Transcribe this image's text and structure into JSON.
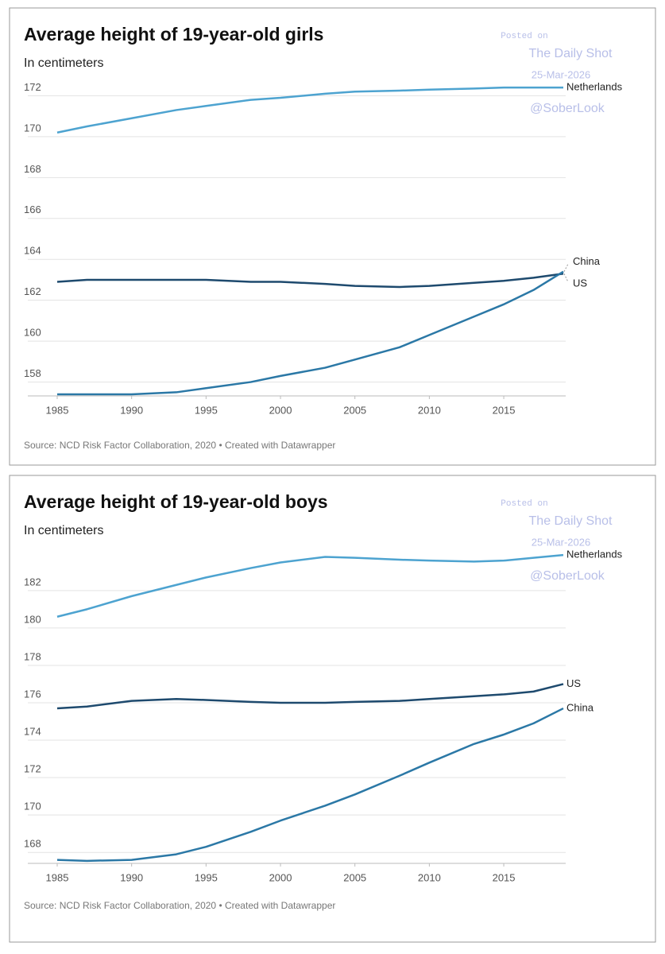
{
  "chart_data": [
    {
      "type": "line",
      "title": "Average height of 19-year-old girls",
      "subtitle": "In centimeters",
      "source": "Source: NCD Risk Factor Collaboration, 2020 • Created with Datawrapper",
      "watermark": [
        "Posted on",
        "The Daily Shot",
        "25-Mar-2026",
        "@SoberLook"
      ],
      "x": [
        1985,
        1987,
        1990,
        1993,
        1995,
        1998,
        2000,
        2003,
        2005,
        2008,
        2010,
        2013,
        2015,
        2017,
        2019
      ],
      "xlim": [
        1985,
        2019
      ],
      "xticks": [
        1985,
        1990,
        1995,
        2000,
        2005,
        2010,
        2015
      ],
      "ylim": [
        157.4,
        172.6
      ],
      "yticks": [
        158,
        160,
        162,
        164,
        166,
        168,
        170,
        172
      ],
      "grid": true,
      "series": [
        {
          "name": "Netherlands",
          "color": "#4da3d0",
          "values": [
            170.2,
            170.5,
            170.9,
            171.3,
            171.5,
            171.8,
            171.9,
            172.1,
            172.2,
            172.25,
            172.3,
            172.35,
            172.4,
            172.4,
            172.4
          ]
        },
        {
          "name": "US",
          "color": "#1e4a6e",
          "values": [
            162.9,
            163.0,
            163.0,
            163.0,
            163.0,
            162.9,
            162.9,
            162.8,
            162.7,
            162.65,
            162.7,
            162.85,
            162.95,
            163.1,
            163.3
          ]
        },
        {
          "name": "China",
          "color": "#2b78a6",
          "values": [
            157.4,
            157.4,
            157.4,
            157.5,
            157.7,
            158.0,
            158.3,
            158.7,
            159.1,
            159.7,
            160.3,
            161.2,
            161.8,
            162.5,
            163.4
          ]
        }
      ]
    },
    {
      "type": "line",
      "title": "Average height of 19-year-old boys",
      "subtitle": "In centimeters",
      "source": "Source: NCD Risk Factor Collaboration, 2020 • Created with Datawrapper",
      "watermark": [
        "Posted on",
        "The Daily Shot",
        "25-Mar-2026",
        "@SoberLook"
      ],
      "x": [
        1985,
        1987,
        1990,
        1993,
        1995,
        1998,
        2000,
        2003,
        2005,
        2008,
        2010,
        2013,
        2015,
        2017,
        2019
      ],
      "xlim": [
        1985,
        2019
      ],
      "xticks": [
        1985,
        1990,
        1995,
        2000,
        2005,
        2010,
        2015
      ],
      "ylim": [
        167.5,
        184.5
      ],
      "yticks": [
        168,
        170,
        172,
        174,
        176,
        178,
        180,
        182
      ],
      "grid": true,
      "series": [
        {
          "name": "Netherlands",
          "color": "#4da3d0",
          "values": [
            180.6,
            181.0,
            181.7,
            182.3,
            182.7,
            183.2,
            183.5,
            183.8,
            183.75,
            183.65,
            183.6,
            183.55,
            183.6,
            183.75,
            183.9
          ]
        },
        {
          "name": "US",
          "color": "#1e4a6e",
          "values": [
            175.7,
            175.8,
            176.1,
            176.2,
            176.15,
            176.05,
            176.0,
            176.0,
            176.05,
            176.1,
            176.2,
            176.35,
            176.45,
            176.6,
            177.0
          ]
        },
        {
          "name": "China",
          "color": "#2b78a6",
          "values": [
            167.6,
            167.55,
            167.6,
            167.9,
            168.3,
            169.1,
            169.7,
            170.5,
            171.1,
            172.1,
            172.8,
            173.8,
            174.3,
            174.9,
            175.7
          ]
        }
      ]
    }
  ]
}
